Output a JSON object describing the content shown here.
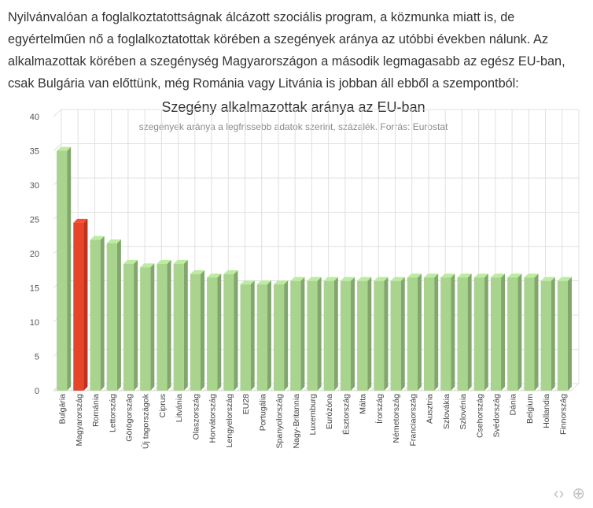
{
  "article": {
    "paragraph": "Nyilvánvalóan a foglalkoztatottságnak álcázott szociális program, a közmunka miatt is, de egyértelműen nő a foglalkoztatottak körében a szegények aránya az utóbbi években nálunk. Az alkalmazottak körében a szegénység Magyarországon a második legmagasabb az egész EU-ban, csak Bulgária van előttünk, még Románia vagy Litvánia is jobban áll ebből a szempontból:"
  },
  "toolbar": {
    "embed_icon": "code-brackets-icon",
    "embed_symbol": "‹›",
    "zoom_icon": "zoom-in-icon",
    "zoom_symbol": "⊕"
  },
  "chart_data": {
    "type": "bar",
    "title": "Szegény alkalmazottak aránya az EU-ban",
    "subtitle": "szegények aránya a legfrissebb adatok szerint, százalék. Forrás: Eurostat",
    "xlabel": "",
    "ylabel": "",
    "ylim": [
      0,
      40
    ],
    "yticks": [
      "0",
      "5",
      "10",
      "15",
      "20",
      "25",
      "30",
      "35",
      "40"
    ],
    "grid": true,
    "legend": "none",
    "colors": {
      "default": "#a8d48e",
      "highlight": "#e8442a"
    },
    "highlight_category": "Magyarország",
    "categories": [
      "Bulgária",
      "Magyarország",
      "Románia",
      "Lettország",
      "Görögország",
      "Új tagországok",
      "Ciprus",
      "Litvánia",
      "Olaszország",
      "Horvátország",
      "Lengyelország",
      "EU28",
      "Portugália",
      "Spanyolország",
      "Nagy-Britannia",
      "Luxemburg",
      "Eurózóna",
      "Észtország",
      "Málta",
      "Írország",
      "Németország",
      "Franciaország",
      "Ausztria",
      "Szlovákia",
      "Szlovénia",
      "Csehország",
      "Svédország",
      "Dánia",
      "Belgium",
      "Hollandia",
      "Finnország"
    ],
    "values": [
      35,
      24.5,
      22,
      21.5,
      18.5,
      18,
      18.5,
      18.5,
      17,
      16.5,
      17,
      15.5,
      15.5,
      15.5,
      16,
      16,
      16,
      16,
      16,
      16,
      16,
      16.5,
      16.5,
      16.5,
      16.5,
      16.5,
      16.5,
      16.5,
      16.5,
      16,
      16
    ]
  }
}
